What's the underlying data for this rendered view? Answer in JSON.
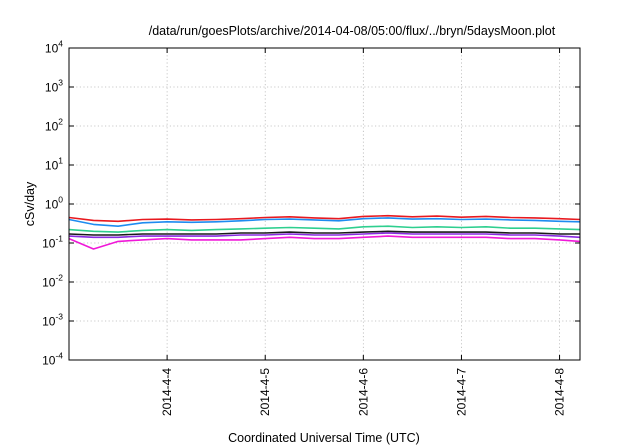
{
  "chart_data": {
    "type": "line",
    "title": "/data/run/goesPlots/archive/2014-04-08/05:00/flux/../bryn/5daysMoon.plot",
    "xlabel": "Coordinated Universal Time (UTC)",
    "ylabel": "cSv/day",
    "y_scale": "log",
    "ylim": [
      0.0001,
      10000
    ],
    "y_ticks": [
      {
        "base": "10",
        "exp": "-4",
        "value": 0.0001
      },
      {
        "base": "10",
        "exp": "-3",
        "value": 0.001
      },
      {
        "base": "10",
        "exp": "-2",
        "value": 0.01
      },
      {
        "base": "10",
        "exp": "-1",
        "value": 0.1
      },
      {
        "base": "10",
        "exp": "0",
        "value": 1
      },
      {
        "base": "10",
        "exp": "1",
        "value": 10
      },
      {
        "base": "10",
        "exp": "2",
        "value": 100
      },
      {
        "base": "10",
        "exp": "3",
        "value": 1000
      },
      {
        "base": "10",
        "exp": "4",
        "value": 10000
      }
    ],
    "xlim": [
      "2014-04-03T00:00",
      "2014-04-08T05:00"
    ],
    "x_ticks": [
      {
        "label": "2014-4-4",
        "value": "2014-04-04T00:00"
      },
      {
        "label": "2014-4-5",
        "value": "2014-04-05T00:00"
      },
      {
        "label": "2014-4-6",
        "value": "2014-04-06T00:00"
      },
      {
        "label": "2014-4-7",
        "value": "2014-04-07T00:00"
      },
      {
        "label": "2014-4-8",
        "value": "2014-04-08T00:00"
      }
    ],
    "grid": true,
    "x": [
      "2014-04-03T00:00",
      "2014-04-03T06:00",
      "2014-04-03T12:00",
      "2014-04-03T18:00",
      "2014-04-04T00:00",
      "2014-04-04T06:00",
      "2014-04-04T12:00",
      "2014-04-04T18:00",
      "2014-04-05T00:00",
      "2014-04-05T06:00",
      "2014-04-05T12:00",
      "2014-04-05T18:00",
      "2014-04-06T00:00",
      "2014-04-06T06:00",
      "2014-04-06T12:00",
      "2014-04-06T18:00",
      "2014-04-07T00:00",
      "2014-04-07T06:00",
      "2014-04-07T12:00",
      "2014-04-07T18:00",
      "2014-04-08T00:00",
      "2014-04-08T05:00"
    ],
    "series": [
      {
        "color": "#e8191f",
        "values": [
          0.45,
          0.38,
          0.36,
          0.4,
          0.41,
          0.39,
          0.4,
          0.42,
          0.45,
          0.47,
          0.44,
          0.42,
          0.48,
          0.5,
          0.47,
          0.49,
          0.46,
          0.48,
          0.45,
          0.44,
          0.42,
          0.4
        ]
      },
      {
        "color": "#1e8cf0",
        "values": [
          0.4,
          0.3,
          0.27,
          0.33,
          0.35,
          0.34,
          0.35,
          0.37,
          0.4,
          0.41,
          0.39,
          0.37,
          0.42,
          0.44,
          0.41,
          0.42,
          0.4,
          0.41,
          0.39,
          0.38,
          0.36,
          0.35
        ]
      },
      {
        "color": "#2ecf8f",
        "values": [
          0.22,
          0.2,
          0.19,
          0.21,
          0.22,
          0.21,
          0.22,
          0.23,
          0.24,
          0.25,
          0.24,
          0.23,
          0.26,
          0.27,
          0.25,
          0.26,
          0.25,
          0.26,
          0.24,
          0.24,
          0.23,
          0.22
        ]
      },
      {
        "color": "#1a1a1a",
        "values": [
          0.17,
          0.16,
          0.16,
          0.17,
          0.17,
          0.17,
          0.17,
          0.18,
          0.18,
          0.19,
          0.18,
          0.18,
          0.19,
          0.2,
          0.19,
          0.19,
          0.19,
          0.19,
          0.18,
          0.18,
          0.17,
          0.17
        ]
      },
      {
        "color": "#8a2be2",
        "values": [
          0.15,
          0.14,
          0.14,
          0.15,
          0.15,
          0.15,
          0.15,
          0.16,
          0.16,
          0.17,
          0.16,
          0.16,
          0.17,
          0.18,
          0.17,
          0.17,
          0.17,
          0.17,
          0.16,
          0.16,
          0.15,
          0.14
        ]
      },
      {
        "color": "#f018d8",
        "values": [
          0.13,
          0.07,
          0.11,
          0.12,
          0.13,
          0.12,
          0.12,
          0.12,
          0.13,
          0.14,
          0.13,
          0.13,
          0.14,
          0.15,
          0.14,
          0.14,
          0.14,
          0.14,
          0.13,
          0.13,
          0.12,
          0.11
        ]
      }
    ]
  }
}
